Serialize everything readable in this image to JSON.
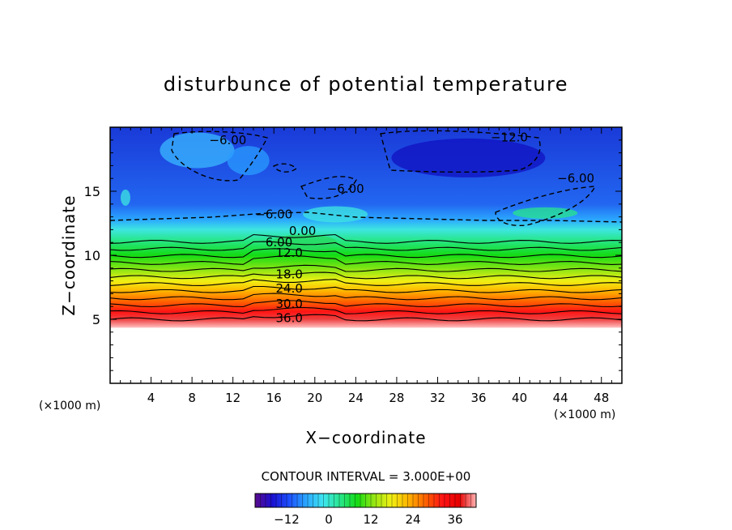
{
  "chart_data": {
    "type": "heatmap",
    "title": "disturbunce of potential temperature",
    "xlabel": "X−coordinate",
    "ylabel": "Z−coordinate",
    "x_unit": "(×1000 m)",
    "y_unit": "(×1000 m)",
    "xlim": [
      0,
      50
    ],
    "ylim": [
      0,
      20
    ],
    "x_ticks": [
      "4",
      "8",
      "12",
      "16",
      "20",
      "24",
      "28",
      "32",
      "36",
      "40",
      "44",
      "48"
    ],
    "y_ticks": [
      "5",
      "10",
      "15"
    ],
    "contour_interval": "CONTOUR INTERVAL = 3.000E+00",
    "colorbar_range": [
      -21,
      42
    ],
    "colorbar_ticks": [
      "−12",
      "0",
      "12",
      "24",
      "36"
    ],
    "colormap": [
      "#5a0a8c",
      "#1a0fd0",
      "#1e50ff",
      "#2aa6ff",
      "#3ee6f0",
      "#28e68c",
      "#14dc14",
      "#96e614",
      "#f0f014",
      "#ffb400",
      "#ff6400",
      "#ff1414",
      "#e60000",
      "#ffb4b4"
    ],
    "contour_labels": [
      {
        "text": "−6.00",
        "x": 11.5,
        "y": 19.0
      },
      {
        "text": "−12.0",
        "x": 39.0,
        "y": 19.2
      },
      {
        "text": "−6.00",
        "x": 23.0,
        "y": 15.2
      },
      {
        "text": "−6.00",
        "x": 45.5,
        "y": 16.0
      },
      {
        "text": "−6.00",
        "x": 16.0,
        "y": 13.2
      },
      {
        "text": "0.00",
        "x": 18.8,
        "y": 11.9
      },
      {
        "text": "6.00",
        "x": 16.5,
        "y": 11.0
      },
      {
        "text": "12.0",
        "x": 17.5,
        "y": 10.2
      },
      {
        "text": "18.0",
        "x": 17.5,
        "y": 8.5
      },
      {
        "text": "24.0",
        "x": 17.5,
        "y": 7.4
      },
      {
        "text": "30.0",
        "x": 17.5,
        "y": 6.2
      },
      {
        "text": "36.0",
        "x": 17.5,
        "y": 5.1
      }
    ]
  }
}
